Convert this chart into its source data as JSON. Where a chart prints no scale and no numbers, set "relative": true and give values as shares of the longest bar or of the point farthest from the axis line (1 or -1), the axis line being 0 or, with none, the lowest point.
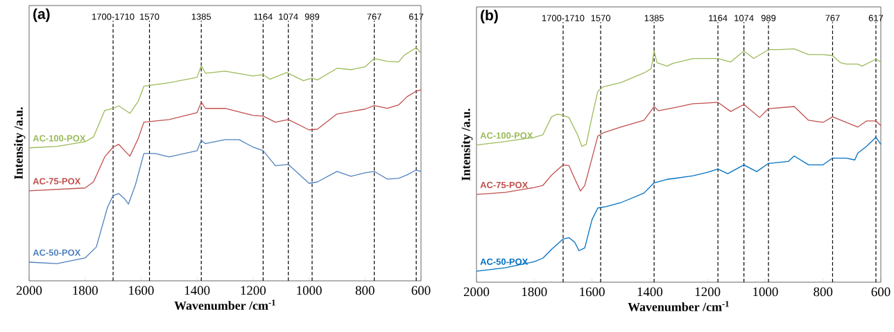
{
  "chart_data": [
    {
      "type": "line",
      "title": "(a)",
      "xlabel": "Wavenumber /cm$^{-1}$",
      "ylabel": "Intensity /a.u.",
      "relative": true,
      "xlim": [
        2000,
        600
      ],
      "xticks": [
        2000,
        1800,
        1600,
        1400,
        1200,
        1000,
        800,
        600
      ],
      "ref_lines": [
        {
          "axis": "x",
          "value": 1700,
          "label": "1700-1710",
          "line_style": "dashed"
        },
        {
          "axis": "x",
          "value": 1570,
          "label": "1570",
          "line_style": "dashed"
        },
        {
          "axis": "x",
          "value": 1385,
          "label": "1385",
          "line_style": "dashed"
        },
        {
          "axis": "x",
          "value": 1164,
          "label": "1164",
          "line_style": "dashed"
        },
        {
          "axis": "x",
          "value": 1074,
          "label": "1074",
          "line_style": "dashed"
        },
        {
          "axis": "x",
          "value": 989,
          "label": "989",
          "line_style": "dashed"
        },
        {
          "axis": "x",
          "value": 767,
          "label": "767",
          "line_style": "dashed"
        },
        {
          "axis": "x",
          "value": 617,
          "label": "617",
          "line_style": "dashed"
        }
      ],
      "series": [
        {
          "name": "AC-100-POX",
          "color": "#9bbb59",
          "x": [
            2000,
            1900,
            1800,
            1770,
            1730,
            1700,
            1680,
            1640,
            1610,
            1590,
            1500,
            1400,
            1385,
            1370,
            1300,
            1200,
            1164,
            1140,
            1080,
            1020,
            989,
            970,
            900,
            850,
            800,
            767,
            720,
            680,
            660,
            620,
            617,
            600
          ],
          "values": [
            0.57,
            0.576,
            0.596,
            0.617,
            0.73,
            0.739,
            0.75,
            0.718,
            0.77,
            0.834,
            0.849,
            0.872,
            0.923,
            0.89,
            0.899,
            0.878,
            0.884,
            0.864,
            0.893,
            0.858,
            0.869,
            0.861,
            0.911,
            0.905,
            0.917,
            0.953,
            0.941,
            0.938,
            0.967,
            0.997,
            1.0,
            0.976
          ]
        },
        {
          "name": "AC-75-POX",
          "color": "#c0504d",
          "x": [
            2000,
            1800,
            1770,
            1730,
            1700,
            1680,
            1640,
            1610,
            1590,
            1500,
            1400,
            1385,
            1370,
            1300,
            1200,
            1164,
            1120,
            1074,
            1000,
            970,
            900,
            800,
            767,
            720,
            680,
            650,
            617,
            600
          ],
          "values": [
            0.386,
            0.398,
            0.424,
            0.531,
            0.573,
            0.585,
            0.534,
            0.611,
            0.68,
            0.691,
            0.721,
            0.766,
            0.739,
            0.739,
            0.709,
            0.706,
            0.68,
            0.691,
            0.647,
            0.65,
            0.715,
            0.736,
            0.751,
            0.739,
            0.754,
            0.789,
            0.813,
            0.819
          ]
        },
        {
          "name": "AC-50-POX",
          "color": "#4f81bd",
          "x": [
            2000,
            1900,
            1800,
            1760,
            1720,
            1700,
            1680,
            1660,
            1645,
            1620,
            1590,
            1550,
            1500,
            1400,
            1385,
            1370,
            1300,
            1250,
            1200,
            1164,
            1120,
            1074,
            1000,
            970,
            900,
            850,
            800,
            767,
            720,
            680,
            650,
            617,
            600
          ],
          "values": [
            0.08,
            0.074,
            0.098,
            0.145,
            0.315,
            0.365,
            0.374,
            0.353,
            0.329,
            0.412,
            0.546,
            0.546,
            0.531,
            0.558,
            0.602,
            0.588,
            0.605,
            0.605,
            0.573,
            0.558,
            0.493,
            0.499,
            0.418,
            0.424,
            0.469,
            0.448,
            0.463,
            0.469,
            0.436,
            0.439,
            0.454,
            0.475,
            0.469
          ]
        }
      ]
    },
    {
      "type": "line",
      "title": "(b)",
      "xlabel": "Wavenumber /cm$^{-1}$",
      "ylabel": "Intensity /a.u.",
      "relative": true,
      "xlim": [
        2000,
        600
      ],
      "xticks": [
        2000,
        1800,
        1600,
        1400,
        1200,
        1000,
        800,
        600
      ],
      "ref_lines": [
        {
          "axis": "x",
          "value": 1700,
          "label": "1700-1710",
          "line_style": "dashed"
        },
        {
          "axis": "x",
          "value": 1570,
          "label": "1570",
          "line_style": "dashed"
        },
        {
          "axis": "x",
          "value": 1385,
          "label": "1385",
          "line_style": "dashed"
        },
        {
          "axis": "x",
          "value": 1164,
          "label": "1164",
          "line_style": "dashed"
        },
        {
          "axis": "x",
          "value": 1074,
          "label": "1074",
          "line_style": "dashed"
        },
        {
          "axis": "x",
          "value": 989,
          "label": "989",
          "line_style": "dashed"
        },
        {
          "axis": "x",
          "value": 767,
          "label": "767",
          "line_style": "dashed"
        },
        {
          "axis": "x",
          "value": 617,
          "label": "617",
          "line_style": "dashed"
        }
      ],
      "series": [
        {
          "name": "AC-100-POX",
          "color": "#9bbb59",
          "x": [
            2000,
            1900,
            1800,
            1770,
            1740,
            1720,
            1700,
            1680,
            1650,
            1635,
            1620,
            1600,
            1580,
            1560,
            1500,
            1420,
            1395,
            1385,
            1375,
            1340,
            1320,
            1250,
            1164,
            1120,
            1074,
            1040,
            989,
            950,
            900,
            850,
            800,
            767,
            740,
            720,
            680,
            665,
            617,
            600
          ],
          "values": [
            0.588,
            0.603,
            0.621,
            0.632,
            0.709,
            0.721,
            0.715,
            0.706,
            0.632,
            0.582,
            0.591,
            0.709,
            0.818,
            0.838,
            0.856,
            0.897,
            0.915,
            0.991,
            0.941,
            0.926,
            0.938,
            0.959,
            0.959,
            0.944,
            0.991,
            0.959,
            0.997,
            0.997,
            1.0,
            0.976,
            0.976,
            0.971,
            0.941,
            0.935,
            0.935,
            0.926,
            0.956,
            0.944
          ]
        },
        {
          "name": "AC-75-POX",
          "color": "#c0504d",
          "x": [
            2000,
            1900,
            1800,
            1770,
            1740,
            1700,
            1680,
            1660,
            1640,
            1625,
            1600,
            1580,
            1560,
            1500,
            1420,
            1385,
            1370,
            1320,
            1250,
            1200,
            1164,
            1120,
            1074,
            1020,
            989,
            900,
            850,
            800,
            767,
            720,
            680,
            650,
            617,
            600
          ],
          "values": [
            0.376,
            0.385,
            0.406,
            0.415,
            0.459,
            0.503,
            0.5,
            0.444,
            0.391,
            0.415,
            0.532,
            0.626,
            0.641,
            0.665,
            0.694,
            0.753,
            0.735,
            0.747,
            0.765,
            0.768,
            0.771,
            0.732,
            0.762,
            0.706,
            0.744,
            0.753,
            0.694,
            0.685,
            0.709,
            0.685,
            0.665,
            0.691,
            0.691,
            0.671
          ]
        },
        {
          "name": "AC-50-POX",
          "color": "#0070c0",
          "x": [
            2000,
            1900,
            1800,
            1770,
            1740,
            1700,
            1680,
            1660,
            1645,
            1625,
            1600,
            1580,
            1550,
            1500,
            1420,
            1385,
            1340,
            1320,
            1250,
            1200,
            1164,
            1130,
            1074,
            1030,
            989,
            920,
            900,
            850,
            800,
            767,
            720,
            690,
            680,
            650,
            617,
            600
          ],
          "values": [
            0.047,
            0.062,
            0.088,
            0.103,
            0.141,
            0.185,
            0.191,
            0.171,
            0.135,
            0.147,
            0.268,
            0.318,
            0.324,
            0.341,
            0.382,
            0.426,
            0.441,
            0.444,
            0.456,
            0.471,
            0.485,
            0.465,
            0.503,
            0.474,
            0.509,
            0.518,
            0.541,
            0.503,
            0.503,
            0.532,
            0.532,
            0.524,
            0.553,
            0.582,
            0.621,
            0.591
          ]
        }
      ]
    }
  ]
}
